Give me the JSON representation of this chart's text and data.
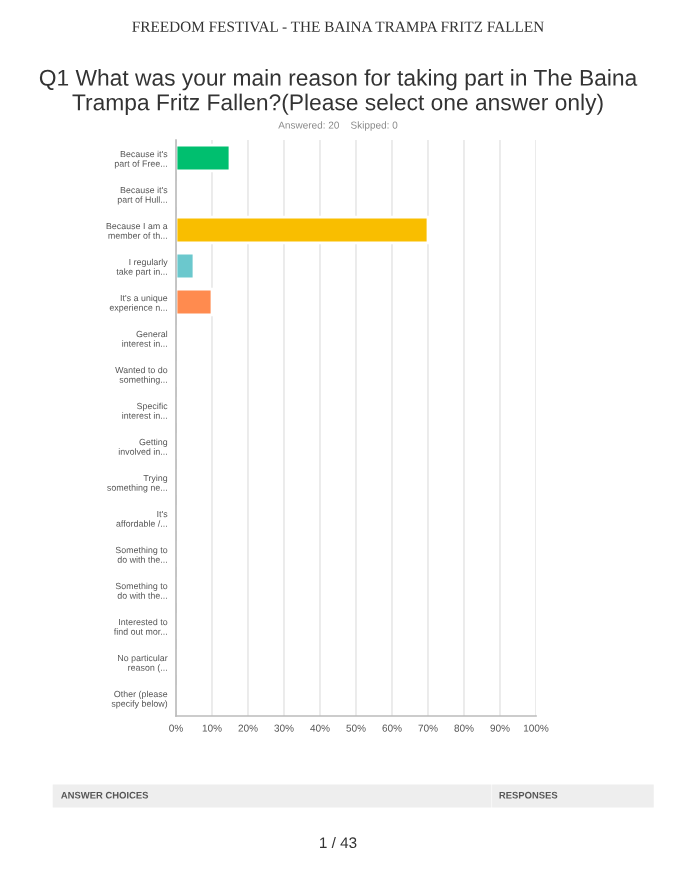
{
  "chart_data": {
    "type": "bar",
    "orientation": "horizontal",
    "title": "Q1 What was your main reason for taking part in The Baina Trampa Fritz Fallen?(Please select one answer only)",
    "subtitle": "Answered: 20    Skipped: 0",
    "categories": [
      "Because it's\npart of Free...",
      "Because it's\npart of Hull...",
      "Because I am a\nmember of th...",
      "I regularly\ntake part in...",
      "It's a unique\nexperience n...",
      "General\ninterest in...",
      "Wanted to do\nsomething...",
      "Specific\ninterest in...",
      "Getting\ninvolved in...",
      "Trying\nsomething ne...",
      "It's\naffordable /...",
      "Something to\ndo with the...",
      "Something to\ndo with the...",
      "Interested to\nfind out mor...",
      "No particular\nreason (...",
      "Other (please\nspecify below)"
    ],
    "values": [
      15,
      0,
      70,
      5,
      10,
      0,
      0,
      0,
      0,
      0,
      0,
      0,
      0,
      0,
      0,
      0
    ],
    "colors": [
      "#00bf6f",
      null,
      "#f9be00",
      "#6bc8cd",
      "#ff8b4f",
      null,
      null,
      null,
      null,
      null,
      null,
      null,
      null,
      null,
      null,
      null
    ],
    "xlim": [
      0,
      100
    ],
    "xticks": [
      {
        "value": 0,
        "label": "0%"
      },
      {
        "value": 10,
        "label": "10%"
      },
      {
        "value": 20,
        "label": "20%"
      },
      {
        "value": 30,
        "label": "30%"
      },
      {
        "value": 40,
        "label": "40%"
      },
      {
        "value": 50,
        "label": "50%"
      },
      {
        "value": 60,
        "label": "60%"
      },
      {
        "value": 70,
        "label": "70%"
      },
      {
        "value": 80,
        "label": "80%"
      },
      {
        "value": 90,
        "label": "90%"
      },
      {
        "value": 100,
        "label": "100%"
      }
    ],
    "grid": "x",
    "annotations": [
      "FREEDOM FESTIVAL - THE BAINA TRAMPA FRITZ FALLEN",
      "ANSWER CHOICES",
      "RESPONSES",
      "1 / 43"
    ]
  }
}
